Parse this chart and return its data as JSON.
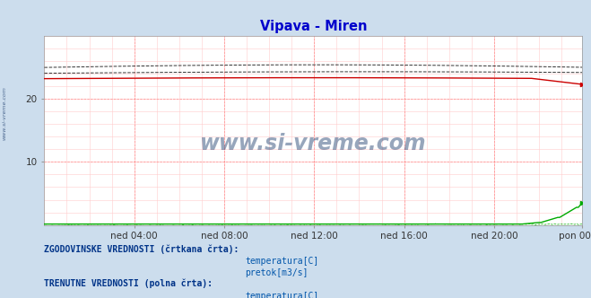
{
  "title": "Vipava - Miren",
  "title_color": "#0000cc",
  "bg_color": "#ccdded",
  "plot_bg_color": "#ffffff",
  "watermark_text": "www.si-vreme.com",
  "watermark_color": "#1a3a6b",
  "xlabel_ticks": [
    "ned 04:00",
    "ned 08:00",
    "ned 12:00",
    "ned 16:00",
    "ned 20:00",
    "pon 00:00"
  ],
  "n_points": 288,
  "ylim": [
    0,
    30
  ],
  "yticks": [
    10,
    20
  ],
  "temp_color": "#cc0000",
  "flow_color": "#00aa00",
  "black_color": "#000000",
  "legend_text_color": "#0055aa",
  "legend_label_color": "#003388",
  "side_label": "www.si-vreme.com"
}
